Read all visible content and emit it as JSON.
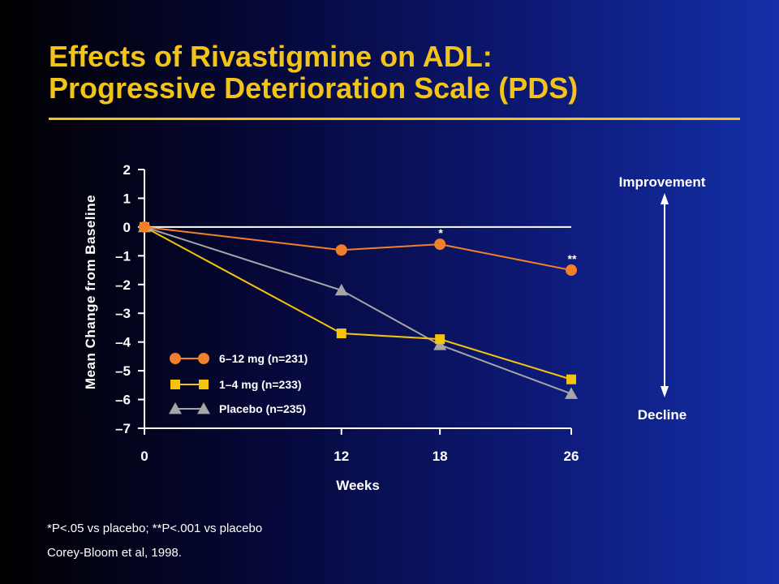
{
  "slide": {
    "title_line1": "Effects of Rivastigmine on ADL:",
    "title_line2": "Progressive Deterioration Scale (PDS)",
    "footnote_sig": "*P<.05 vs placebo; **P<.001 vs placebo",
    "footnote_ref": "Corey-Bloom et al, 1998."
  },
  "colors": {
    "title": "#f2c41a",
    "high_dose": "#f2802a",
    "low_dose": "#f5c20c",
    "placebo": "#a6a6a6",
    "axis": "#ffffff"
  },
  "chart_data": {
    "type": "line",
    "xlabel": "Weeks",
    "ylabel": "Mean Change from Baseline",
    "x_ticks": [
      0,
      12,
      18,
      26
    ],
    "y_ticks": [
      2,
      1,
      0,
      -1,
      -2,
      -3,
      -4,
      -5,
      -6,
      -7
    ],
    "y_tick_labels": [
      "2",
      "1",
      "0",
      "–1",
      "–2",
      "–3",
      "–4",
      "–5",
      "–6",
      "–7"
    ],
    "xlim": [
      0,
      26
    ],
    "ylim": [
      -7,
      2
    ],
    "series": [
      {
        "name": "6–12 mg (n=231)",
        "marker": "circle",
        "color": "#f2802a",
        "x": [
          0,
          12,
          18,
          26
        ],
        "y": [
          0.0,
          -0.8,
          -0.6,
          -1.5
        ],
        "annotations": [
          {
            "x": 18,
            "text": "*"
          },
          {
            "x": 26,
            "text": "**"
          }
        ]
      },
      {
        "name": "1–4 mg (n=233)",
        "marker": "square",
        "color": "#f5c20c",
        "x": [
          0,
          12,
          18,
          26
        ],
        "y": [
          0.0,
          -3.7,
          -3.9,
          -5.3
        ]
      },
      {
        "name": "Placebo (n=235)",
        "marker": "triangle",
        "color": "#a6a6a6",
        "x": [
          0,
          12,
          18,
          26
        ],
        "y": [
          0.0,
          -2.2,
          -4.1,
          -5.8
        ]
      }
    ],
    "direction_labels": {
      "up": "Improvement",
      "down": "Decline"
    }
  }
}
